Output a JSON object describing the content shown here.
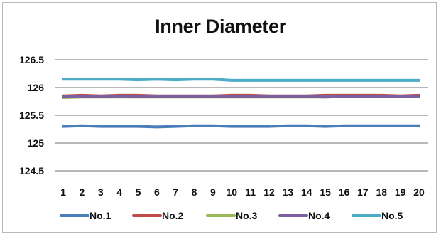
{
  "chart_data": {
    "type": "line",
    "title": "Inner Diameter",
    "xlabel": "",
    "ylabel": "",
    "categories": [
      "1",
      "2",
      "3",
      "4",
      "5",
      "6",
      "7",
      "8",
      "9",
      "10",
      "11",
      "12",
      "13",
      "14",
      "15",
      "16",
      "17",
      "18",
      "19",
      "20"
    ],
    "ylim": [
      124.5,
      126.5
    ],
    "yticks": [
      "124.5",
      "125",
      "125.5",
      "126",
      "126.5"
    ],
    "grid": true,
    "legend_position": "bottom",
    "series": [
      {
        "name": "No.1",
        "color": "#4a7ebb",
        "values": [
          125.3,
          125.31,
          125.3,
          125.3,
          125.3,
          125.29,
          125.3,
          125.31,
          125.31,
          125.3,
          125.3,
          125.3,
          125.31,
          125.31,
          125.3,
          125.31,
          125.31,
          125.31,
          125.31,
          125.31
        ]
      },
      {
        "name": "No.2",
        "color": "#be4b48",
        "values": [
          125.85,
          125.86,
          125.85,
          125.86,
          125.86,
          125.85,
          125.85,
          125.85,
          125.85,
          125.86,
          125.86,
          125.85,
          125.85,
          125.85,
          125.86,
          125.86,
          125.86,
          125.86,
          125.85,
          125.86
        ]
      },
      {
        "name": "No.3",
        "color": "#98b954",
        "values": [
          125.82,
          125.83,
          125.83,
          125.83,
          125.83,
          125.83,
          125.83,
          125.83,
          125.83,
          125.83,
          125.83,
          125.83,
          125.83,
          125.83,
          125.83,
          125.84,
          125.84,
          125.84,
          125.84,
          125.84
        ]
      },
      {
        "name": "No.4",
        "color": "#7d60a0",
        "values": [
          125.84,
          125.84,
          125.84,
          125.85,
          125.84,
          125.84,
          125.84,
          125.84,
          125.84,
          125.84,
          125.84,
          125.84,
          125.84,
          125.84,
          125.83,
          125.84,
          125.84,
          125.84,
          125.84,
          125.84
        ]
      },
      {
        "name": "No.5",
        "color": "#4bacc6",
        "values": [
          126.15,
          126.15,
          126.15,
          126.15,
          126.14,
          126.15,
          126.14,
          126.15,
          126.15,
          126.13,
          126.13,
          126.13,
          126.13,
          126.13,
          126.13,
          126.13,
          126.13,
          126.13,
          126.13,
          126.13
        ]
      }
    ]
  }
}
